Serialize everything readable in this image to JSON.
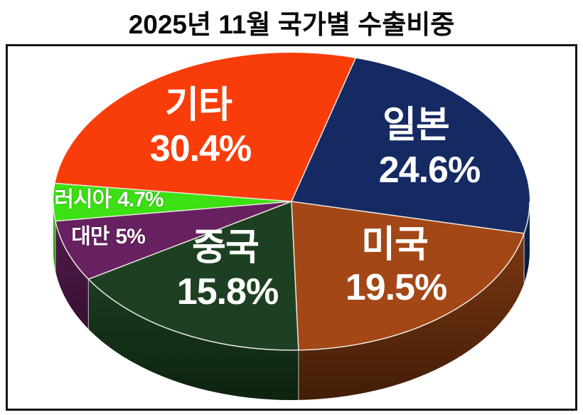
{
  "chart_data": {
    "type": "pie",
    "style": "3d",
    "title": "2025년 11월 국가별 수출비중",
    "unit": "%",
    "total": 100.0,
    "legend_position": "none",
    "slices": [
      {
        "key": "japan",
        "label": "일본",
        "value": 24.6,
        "pct_text": "24.6%",
        "color": "#152A63",
        "wall_top": "#12265A",
        "wall_bottom": "#0A1635"
      },
      {
        "key": "usa",
        "label": "미국",
        "value": 19.5,
        "pct_text": "19.5%",
        "color": "#A34717",
        "wall_top": "#7C3712",
        "wall_bottom": "#421D07"
      },
      {
        "key": "china",
        "label": "중국",
        "value": 15.8,
        "pct_text": "15.8%",
        "color": "#1E4022",
        "wall_top": "#1B3B1F",
        "wall_bottom": "#0D2310"
      },
      {
        "key": "taiwan",
        "label": "대만",
        "value": 5,
        "pct_text": "5%",
        "color": "#672161",
        "wall_top": "#531B4B",
        "wall_bottom": "#371032"
      },
      {
        "key": "russia",
        "label": "러시아",
        "value": 4.7,
        "pct_text": "4.7%",
        "color": "#3BE112",
        "wall_top": "#2FC40E",
        "wall_bottom": "#1F8A06"
      },
      {
        "key": "others",
        "label": "기타",
        "value": 30.4,
        "pct_text": "30.4%",
        "color": "#F93D0A",
        "wall_top": "#C52F06",
        "wall_bottom": "#8A2104"
      }
    ],
    "layout_hints": {
      "clockwise": true,
      "start_angle_deg": 15.6,
      "apparent_spans_deg": [
        86.8,
        75.9,
        60.2,
        23.9,
        14.6,
        98.6
      ],
      "label_color": "#FFFFFF",
      "separator_color": "#EFE9E2",
      "frame_color": "#161616",
      "background": "#FFFFFF"
    }
  }
}
